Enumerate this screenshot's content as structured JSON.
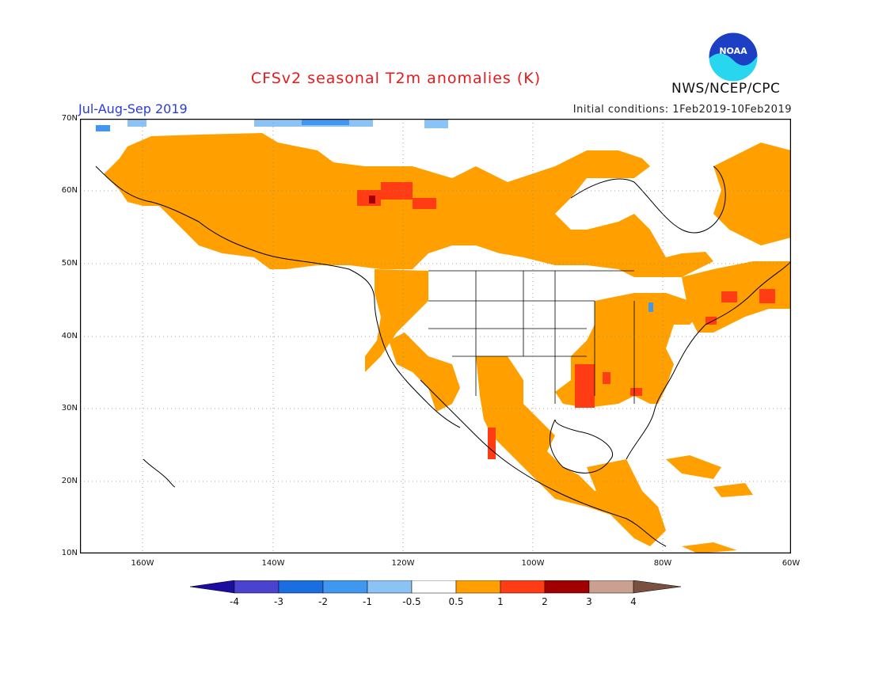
{
  "header": {
    "title": "CFSv2 seasonal T2m anomalies (K)",
    "period": "Jul-Aug-Sep 2019",
    "initial_conditions": "Initial conditions: 1Feb2019-10Feb2019",
    "agency": "NWS/NCEP/CPC",
    "logo_text": "NOAA"
  },
  "axes": {
    "lat_labels": [
      "70N",
      "60N",
      "50N",
      "40N",
      "30N",
      "20N",
      "10N"
    ],
    "lon_labels": [
      "160W",
      "140W",
      "120W",
      "100W",
      "80W",
      "60W"
    ]
  },
  "colorbar": {
    "labels": [
      "-4",
      "-3",
      "-2",
      "-1",
      "-0.5",
      "0.5",
      "1",
      "2",
      "3",
      "4"
    ],
    "colors": [
      "#1a0da0",
      "#4a43d0",
      "#1a6ee0",
      "#4097f0",
      "#8cc3f5",
      "#ffffff",
      "#ffa000",
      "#ff3c14",
      "#a00000",
      "#caa090",
      "#7a5040"
    ]
  },
  "colors": {
    "warm_05_1": "#ffa000",
    "warm_1_2": "#ff3c14",
    "warm_2_3": "#a00000",
    "cool_05_1": "#8cc3f5",
    "cool_1_2": "#4097f0"
  }
}
